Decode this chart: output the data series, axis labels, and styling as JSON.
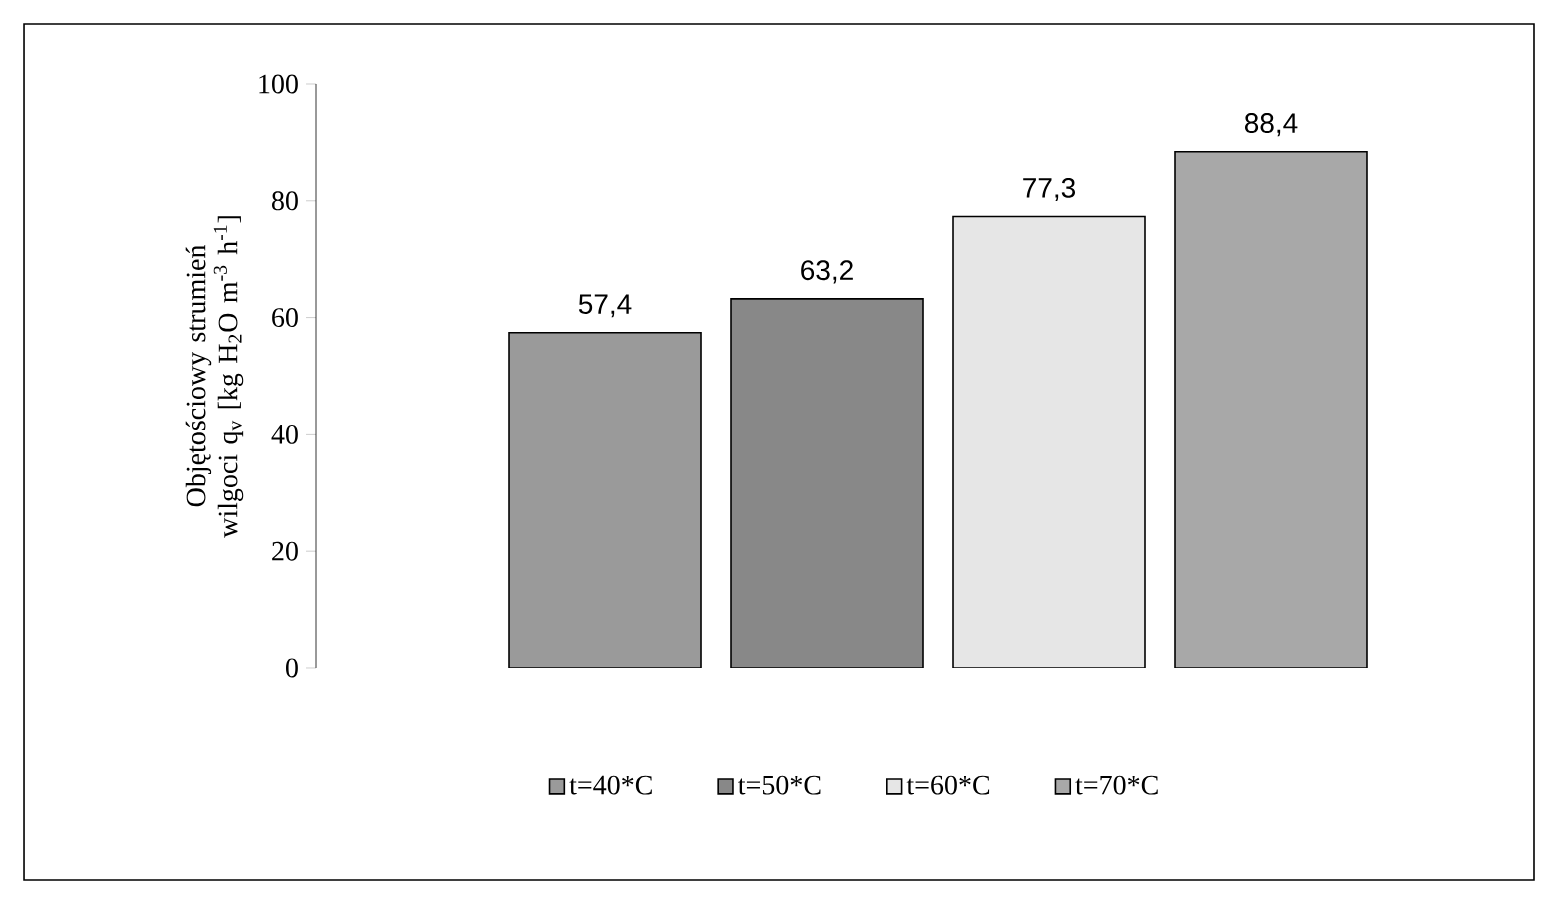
{
  "chart_data": {
    "type": "bar",
    "ylabel": "Objętościowy strumień wilgoci q$_{v}$ [kg H$_{2}$O m$^{-3}$ h$^{-1}$]",
    "categories": [
      null
    ],
    "ylim": [
      0,
      100
    ],
    "yticks": [
      0,
      20,
      40,
      60,
      80,
      100
    ],
    "legend": "bottom",
    "grid": false,
    "series": [
      {
        "name": "t=40*C",
        "color": "#9a9a9a",
        "values": [
          57.4
        ],
        "value_labels": [
          "57,4"
        ]
      },
      {
        "name": "t=50*C",
        "color": "#888888",
        "values": [
          63.2
        ],
        "value_labels": [
          "63,2"
        ]
      },
      {
        "name": "t=60*C",
        "color": "#e6e6e6",
        "values": [
          77.3
        ],
        "value_labels": [
          "77,3"
        ]
      },
      {
        "name": "t=70*C",
        "color": "#a8a8a8",
        "values": [
          88.4
        ],
        "value_labels": [
          "88,4"
        ]
      }
    ]
  }
}
